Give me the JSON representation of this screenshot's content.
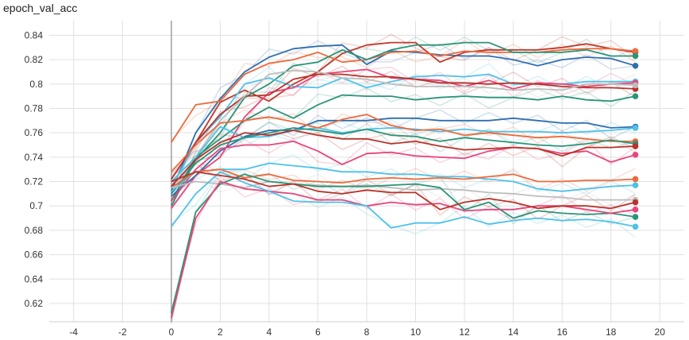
{
  "chart_data": {
    "type": "line",
    "title": "epoch_val_acc",
    "xlim": [
      -5,
      21
    ],
    "ylim": [
      0.605,
      0.852
    ],
    "xticks": [
      -4,
      -2,
      0,
      2,
      4,
      6,
      8,
      10,
      12,
      14,
      16,
      18,
      20
    ],
    "yticks": [
      0.62,
      0.64,
      0.66,
      0.68,
      0.7,
      0.72,
      0.74,
      0.76,
      0.78,
      0.8,
      0.82,
      0.84
    ],
    "ytick_labels": [
      "0.62",
      "0.64",
      "0.66",
      "0.68",
      "0.7",
      "0.72",
      "0.74",
      "0.76",
      "0.78",
      "0.8",
      "0.82",
      "0.84"
    ],
    "grid": true,
    "x": [
      0,
      1,
      2,
      3,
      4,
      5,
      6,
      7,
      8,
      9,
      10,
      11,
      12,
      13,
      14,
      15,
      16,
      17,
      18,
      19
    ],
    "series": [
      {
        "color": "#2f6fb0",
        "values": [
          0.712,
          0.76,
          0.788,
          0.81,
          0.822,
          0.829,
          0.831,
          0.832,
          0.816,
          0.827,
          0.826,
          0.824,
          0.823,
          0.823,
          0.82,
          0.815,
          0.82,
          0.822,
          0.821,
          0.815
        ]
      },
      {
        "color": "#c0392b",
        "values": [
          0.715,
          0.752,
          0.785,
          0.795,
          0.786,
          0.8,
          0.81,
          0.825,
          0.832,
          0.834,
          0.834,
          0.818,
          0.826,
          0.828,
          0.828,
          0.828,
          0.83,
          0.833,
          0.829,
          0.826
        ]
      },
      {
        "color": "#ec6a3d",
        "values": [
          0.752,
          0.783,
          0.786,
          0.808,
          0.817,
          0.82,
          0.826,
          0.818,
          0.82,
          0.826,
          0.827,
          0.823,
          0.827,
          0.826,
          0.826,
          0.826,
          0.828,
          0.829,
          0.829,
          0.827
        ]
      },
      {
        "color": "#2a9478",
        "values": [
          0.7,
          0.738,
          0.76,
          0.789,
          0.8,
          0.815,
          0.818,
          0.828,
          0.82,
          0.828,
          0.832,
          0.832,
          0.834,
          0.834,
          0.826,
          0.826,
          0.826,
          0.828,
          0.823,
          0.823
        ]
      },
      {
        "color": "#4fc1e9",
        "values": [
          0.715,
          0.752,
          0.773,
          0.8,
          0.805,
          0.798,
          0.797,
          0.805,
          0.797,
          0.802,
          0.806,
          0.807,
          0.806,
          0.808,
          0.8,
          0.8,
          0.8,
          0.802,
          0.802,
          0.802
        ]
      },
      {
        "color": "#e8457a",
        "values": [
          0.698,
          0.725,
          0.74,
          0.773,
          0.793,
          0.797,
          0.808,
          0.81,
          0.812,
          0.805,
          0.804,
          0.803,
          0.798,
          0.803,
          0.796,
          0.801,
          0.8,
          0.798,
          0.8,
          0.801
        ]
      },
      {
        "color": "#b8332b",
        "values": [
          0.722,
          0.752,
          0.775,
          0.79,
          0.791,
          0.804,
          0.808,
          0.808,
          0.806,
          0.806,
          0.804,
          0.801,
          0.801,
          0.8,
          0.801,
          0.8,
          0.798,
          0.797,
          0.797,
          0.796
        ]
      },
      {
        "color": "#bdbdbd",
        "values": [
          0.71,
          0.74,
          0.77,
          0.79,
          0.808,
          0.811,
          0.81,
          0.805,
          0.804,
          0.8,
          0.798,
          0.798,
          0.798,
          0.797,
          0.795,
          0.796,
          0.795,
          0.8,
          0.8,
          0.799
        ]
      },
      {
        "color": "#2a9478",
        "values": [
          0.704,
          0.74,
          0.755,
          0.77,
          0.781,
          0.772,
          0.783,
          0.791,
          0.79,
          0.79,
          0.787,
          0.789,
          0.79,
          0.789,
          0.789,
          0.787,
          0.79,
          0.787,
          0.786,
          0.79
        ]
      },
      {
        "color": "#2f6fb0",
        "values": [
          0.708,
          0.725,
          0.745,
          0.757,
          0.762,
          0.762,
          0.77,
          0.77,
          0.77,
          0.772,
          0.772,
          0.77,
          0.77,
          0.77,
          0.772,
          0.77,
          0.768,
          0.768,
          0.764,
          0.765
        ]
      },
      {
        "color": "#4fc1e9",
        "values": [
          0.72,
          0.74,
          0.765,
          0.756,
          0.757,
          0.762,
          0.764,
          0.76,
          0.763,
          0.764,
          0.763,
          0.761,
          0.763,
          0.761,
          0.761,
          0.761,
          0.76,
          0.761,
          0.762,
          0.764
        ]
      },
      {
        "color": "#ec6a3d",
        "values": [
          0.728,
          0.75,
          0.768,
          0.77,
          0.773,
          0.769,
          0.764,
          0.771,
          0.775,
          0.766,
          0.762,
          0.763,
          0.758,
          0.76,
          0.758,
          0.756,
          0.757,
          0.755,
          0.753,
          0.753
        ]
      },
      {
        "color": "#e8457a",
        "values": [
          0.704,
          0.73,
          0.747,
          0.75,
          0.75,
          0.753,
          0.745,
          0.734,
          0.743,
          0.744,
          0.741,
          0.74,
          0.739,
          0.745,
          0.748,
          0.747,
          0.743,
          0.745,
          0.736,
          0.742
        ]
      },
      {
        "color": "#2a9478",
        "values": [
          0.71,
          0.735,
          0.75,
          0.756,
          0.76,
          0.764,
          0.762,
          0.759,
          0.763,
          0.758,
          0.757,
          0.753,
          0.756,
          0.754,
          0.752,
          0.75,
          0.749,
          0.751,
          0.754,
          0.751
        ]
      },
      {
        "color": "#b8332b",
        "values": [
          0.716,
          0.738,
          0.752,
          0.76,
          0.758,
          0.762,
          0.758,
          0.755,
          0.755,
          0.751,
          0.753,
          0.749,
          0.746,
          0.747,
          0.748,
          0.747,
          0.741,
          0.748,
          0.748,
          0.749
        ]
      },
      {
        "color": "#4fc1e9",
        "values": [
          0.712,
          0.728,
          0.73,
          0.73,
          0.735,
          0.733,
          0.731,
          0.728,
          0.728,
          0.726,
          0.726,
          0.724,
          0.724,
          0.722,
          0.72,
          0.714,
          0.712,
          0.714,
          0.716,
          0.717
        ]
      },
      {
        "color": "#ec6a3d",
        "values": [
          0.715,
          0.728,
          0.73,
          0.723,
          0.726,
          0.721,
          0.72,
          0.719,
          0.722,
          0.723,
          0.722,
          0.723,
          0.722,
          0.724,
          0.726,
          0.72,
          0.72,
          0.721,
          0.721,
          0.722
        ]
      },
      {
        "color": "#bdbdbd",
        "values": [
          0.715,
          0.72,
          0.718,
          0.715,
          0.72,
          0.718,
          0.717,
          0.716,
          0.717,
          0.715,
          0.713,
          0.714,
          0.713,
          0.711,
          0.71,
          0.708,
          0.707,
          0.705,
          0.705,
          0.705
        ]
      },
      {
        "color": "#2a9478",
        "values": [
          0.612,
          0.695,
          0.718,
          0.726,
          0.72,
          0.718,
          0.716,
          0.716,
          0.716,
          0.717,
          0.718,
          0.715,
          0.697,
          0.703,
          0.69,
          0.696,
          0.694,
          0.693,
          0.694,
          0.691
        ]
      },
      {
        "color": "#e8457a",
        "values": [
          0.608,
          0.69,
          0.72,
          0.714,
          0.712,
          0.71,
          0.705,
          0.705,
          0.7,
          0.703,
          0.701,
          0.702,
          0.696,
          0.697,
          0.697,
          0.7,
          0.7,
          0.697,
          0.694,
          0.697
        ]
      },
      {
        "color": "#4fc1e9",
        "values": [
          0.683,
          0.71,
          0.728,
          0.719,
          0.712,
          0.704,
          0.703,
          0.703,
          0.7,
          0.682,
          0.686,
          0.686,
          0.691,
          0.685,
          0.688,
          0.69,
          0.688,
          0.689,
          0.687,
          0.683
        ]
      },
      {
        "color": "#b8332b",
        "values": [
          0.72,
          0.728,
          0.725,
          0.722,
          0.716,
          0.718,
          0.712,
          0.71,
          0.713,
          0.711,
          0.711,
          0.697,
          0.703,
          0.706,
          0.703,
          0.698,
          0.7,
          0.7,
          0.698,
          0.703
        ]
      }
    ]
  }
}
